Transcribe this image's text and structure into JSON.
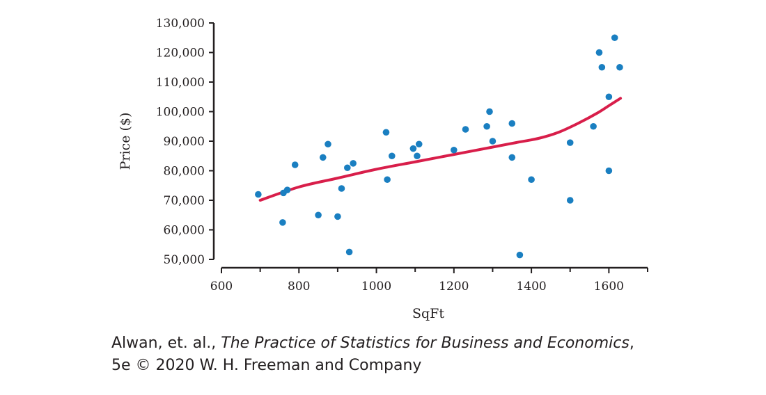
{
  "chart_data": {
    "type": "scatter",
    "xlabel": "SqFt",
    "ylabel": "Price ($)",
    "xlim": [
      600,
      1700
    ],
    "ylim": [
      50000,
      130000
    ],
    "x_ticks": [
      "600",
      "800",
      "1000",
      "1200",
      "1400",
      "1600"
    ],
    "y_ticks": [
      "50,000",
      "60,000",
      "70,000",
      "80,000",
      "90,000",
      "100,000",
      "110,000",
      "120,000",
      "130,000"
    ],
    "grid": false,
    "legend": "none",
    "points": [
      {
        "x": 695,
        "y": 72000
      },
      {
        "x": 758,
        "y": 62500
      },
      {
        "x": 760,
        "y": 72500
      },
      {
        "x": 770,
        "y": 73500
      },
      {
        "x": 790,
        "y": 82000
      },
      {
        "x": 850,
        "y": 65000
      },
      {
        "x": 862,
        "y": 84500
      },
      {
        "x": 875,
        "y": 89000
      },
      {
        "x": 900,
        "y": 64500
      },
      {
        "x": 910,
        "y": 74000
      },
      {
        "x": 925,
        "y": 81000
      },
      {
        "x": 930,
        "y": 52500
      },
      {
        "x": 940,
        "y": 82500
      },
      {
        "x": 1025,
        "y": 93000
      },
      {
        "x": 1028,
        "y": 77000
      },
      {
        "x": 1040,
        "y": 85000
      },
      {
        "x": 1095,
        "y": 87500
      },
      {
        "x": 1105,
        "y": 85000
      },
      {
        "x": 1110,
        "y": 89000
      },
      {
        "x": 1200,
        "y": 87000
      },
      {
        "x": 1230,
        "y": 94000
      },
      {
        "x": 1285,
        "y": 95000
      },
      {
        "x": 1292,
        "y": 100000
      },
      {
        "x": 1300,
        "y": 90000
      },
      {
        "x": 1350,
        "y": 96000
      },
      {
        "x": 1350,
        "y": 84500
      },
      {
        "x": 1370,
        "y": 51500
      },
      {
        "x": 1400,
        "y": 77000
      },
      {
        "x": 1500,
        "y": 89500
      },
      {
        "x": 1500,
        "y": 70000
      },
      {
        "x": 1560,
        "y": 95000
      },
      {
        "x": 1575,
        "y": 120000
      },
      {
        "x": 1582,
        "y": 115000
      },
      {
        "x": 1600,
        "y": 105000
      },
      {
        "x": 1600,
        "y": 80000
      },
      {
        "x": 1615,
        "y": 125000
      },
      {
        "x": 1628,
        "y": 115000
      }
    ],
    "smooth_curve": [
      {
        "x": 700,
        "y": 70000
      },
      {
        "x": 800,
        "y": 74500
      },
      {
        "x": 900,
        "y": 77500
      },
      {
        "x": 1000,
        "y": 80500
      },
      {
        "x": 1100,
        "y": 83000
      },
      {
        "x": 1200,
        "y": 85500
      },
      {
        "x": 1300,
        "y": 88000
      },
      {
        "x": 1360,
        "y": 89500
      },
      {
        "x": 1420,
        "y": 91000
      },
      {
        "x": 1470,
        "y": 93000
      },
      {
        "x": 1520,
        "y": 96000
      },
      {
        "x": 1570,
        "y": 99500
      },
      {
        "x": 1600,
        "y": 102000
      },
      {
        "x": 1630,
        "y": 104500
      }
    ],
    "colors": {
      "points": "#1a7fc1",
      "curve": "#d81e4a",
      "axis": "#231f20"
    }
  },
  "caption": {
    "authors": "Alwan, et. al., ",
    "book_title": "The Practice of Statistics for Business and Economics",
    "after_title": ",",
    "line2": "5e © 2020 W. H. Freeman and Company"
  }
}
